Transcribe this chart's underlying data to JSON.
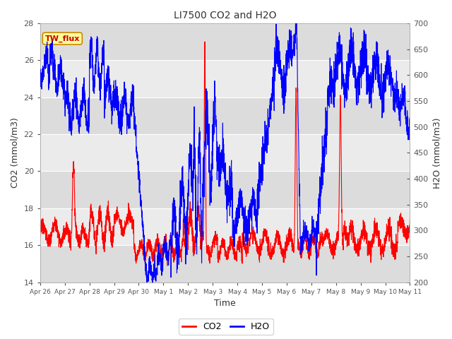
{
  "title": "LI7500 CO2 and H2O",
  "xlabel": "Time",
  "ylabel_left": "CO2 (mmol/m3)",
  "ylabel_right": "H2O (mmol/m3)",
  "ylim_left": [
    14,
    28
  ],
  "ylim_right": [
    200,
    700
  ],
  "yticks_left": [
    14,
    16,
    18,
    20,
    22,
    24,
    26,
    28
  ],
  "yticks_right": [
    200,
    250,
    300,
    350,
    400,
    450,
    500,
    550,
    600,
    650,
    700
  ],
  "xtick_labels": [
    "Apr 26",
    "Apr 27",
    "Apr 28",
    "Apr 29",
    "Apr 30",
    "May 1",
    "May 2",
    "May 3",
    "May 4",
    "May 5",
    "May 6",
    "May 7",
    "May 8",
    "May 9",
    "May 10",
    "May 11"
  ],
  "legend_label": "TW_flux",
  "co2_color": "#FF0000",
  "h2o_color": "#0000FF",
  "bg_color": "#FFFFFF",
  "band_color_dark": "#DCDCDC",
  "band_color_light": "#EBEBEB",
  "grid_color": "#FFFFFF",
  "annotation_box_color": "#FFFF99",
  "annotation_border_color": "#CC8800"
}
